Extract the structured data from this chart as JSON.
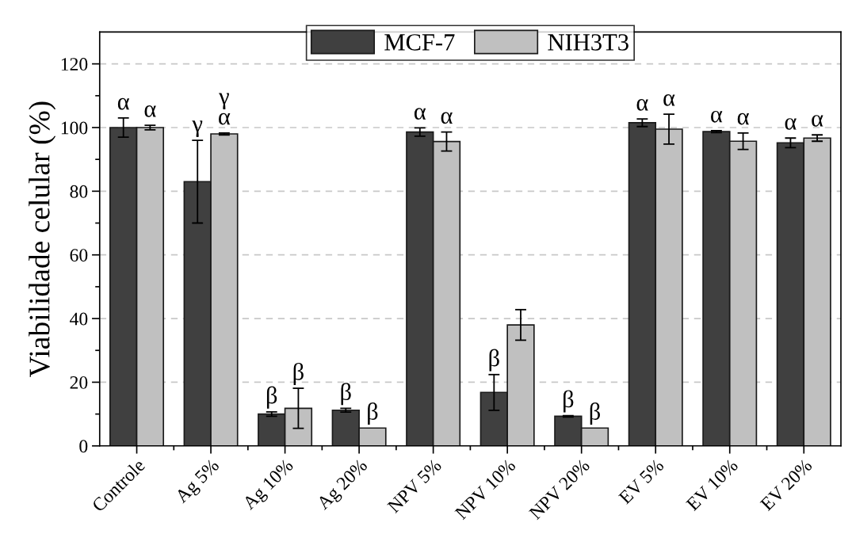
{
  "chart_data": {
    "type": "bar",
    "ylabel": "Viabilidade celular (%)",
    "categories": [
      "Controle",
      "Ag 5%",
      "Ag 10%",
      "Ag 20%",
      "NPV 5%",
      "NPV 10%",
      "NPV 20%",
      "EV 5%",
      "EV 10%",
      "EV 20%"
    ],
    "series": [
      {
        "name": "MCF-7",
        "color": "#404040",
        "values": [
          100,
          83,
          10,
          11.2,
          98.6,
          16.8,
          9.3,
          101.5,
          98.7,
          95.2
        ],
        "errors": [
          3,
          13,
          0.7,
          0.6,
          1.3,
          5.6,
          0.2,
          1.2,
          0.3,
          1.5
        ],
        "value_labels": [
          "α",
          "γ",
          "β",
          "β",
          "α",
          "β",
          "β",
          "α",
          "α",
          "α"
        ]
      },
      {
        "name": "NIH3T3",
        "color": "#c0c0c0",
        "values": [
          100,
          98,
          11.8,
          5.6,
          95.6,
          38,
          5.6,
          99.5,
          95.7,
          96.7
        ],
        "errors": [
          0.7,
          0.3,
          6.3,
          null,
          3,
          4.8,
          null,
          4.7,
          2.6,
          1
        ],
        "value_labels": [
          "α",
          "γ\nα",
          "β",
          "β",
          "α",
          null,
          "β",
          "α",
          "α",
          "α"
        ]
      }
    ],
    "ylim": [
      0,
      130
    ],
    "yticks": [
      0,
      {
        "value": 10,
        "label": null
      },
      20,
      {
        "value": 30,
        "label": null
      },
      40,
      {
        "value": 50,
        "label": null
      },
      60,
      {
        "value": 70,
        "label": null
      },
      80,
      {
        "value": 90,
        "label": null
      },
      100,
      {
        "value": 110,
        "label": null
      },
      120
    ],
    "grid": "y",
    "legend": "top"
  }
}
